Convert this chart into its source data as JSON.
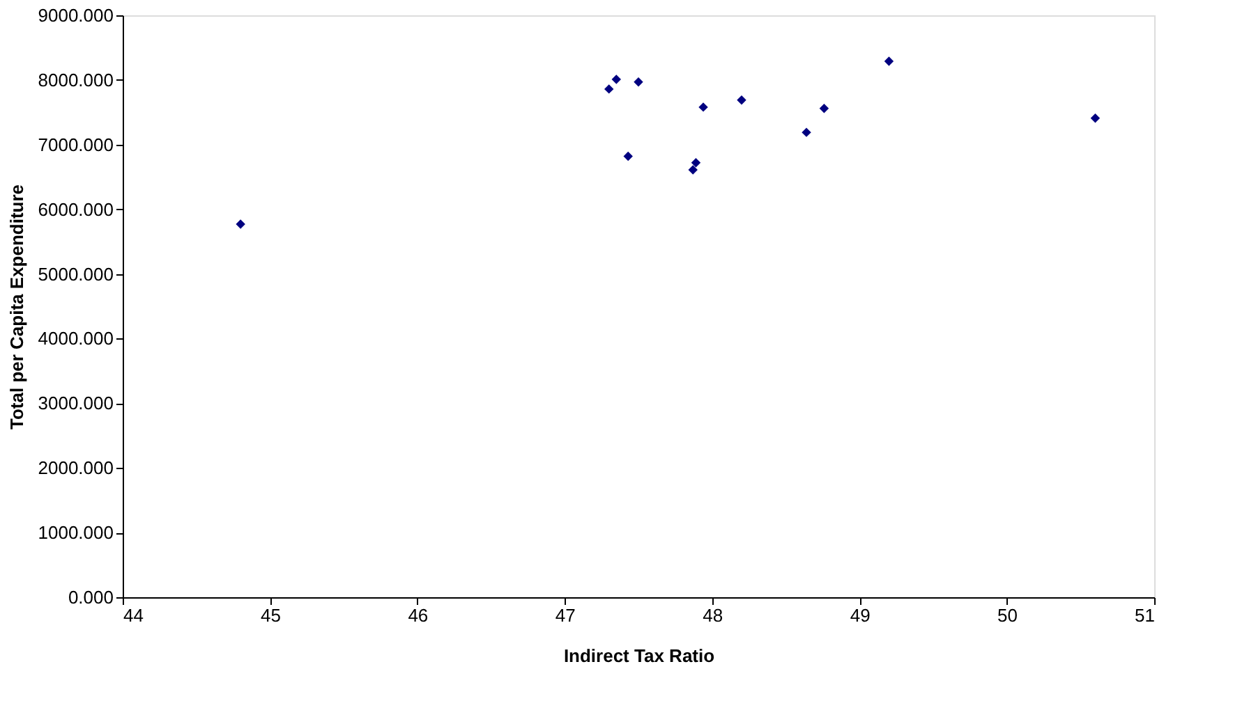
{
  "chart_data": {
    "type": "scatter",
    "xlabel": "Indirect Tax Ratio",
    "ylabel": "Total per Capita Expenditure",
    "x": [
      44.8,
      47.3,
      47.35,
      47.5,
      47.43,
      47.87,
      47.89,
      47.94,
      48.2,
      48.64,
      48.76,
      49.2,
      50.6
    ],
    "series": [
      {
        "color": "#000080",
        "values": [
          5770,
          7860,
          8010,
          7970,
          6820,
          6610,
          6720,
          7580,
          7690,
          7190,
          7560,
          8290,
          7410
        ]
      }
    ],
    "xlim": [
      44,
      51
    ],
    "xticks": [
      44,
      45,
      46,
      47,
      48,
      49,
      50,
      51
    ],
    "ylim": [
      0,
      9000
    ],
    "yticks": [
      {
        "value": 0,
        "label": "0.000"
      },
      {
        "value": 1000,
        "label": "1000.000"
      },
      {
        "value": 2000,
        "label": "2000.000"
      },
      {
        "value": 3000,
        "label": "3000.000"
      },
      {
        "value": 4000,
        "label": "4000.000"
      },
      {
        "value": 5000,
        "label": "5000.000"
      },
      {
        "value": 6000,
        "label": "6000.000"
      },
      {
        "value": 7000,
        "label": "7000.000"
      },
      {
        "value": 8000,
        "label": "8000.000"
      },
      {
        "value": 9000,
        "label": "9000.000"
      }
    ],
    "marker": "diamond",
    "grid": false,
    "legend": false
  }
}
